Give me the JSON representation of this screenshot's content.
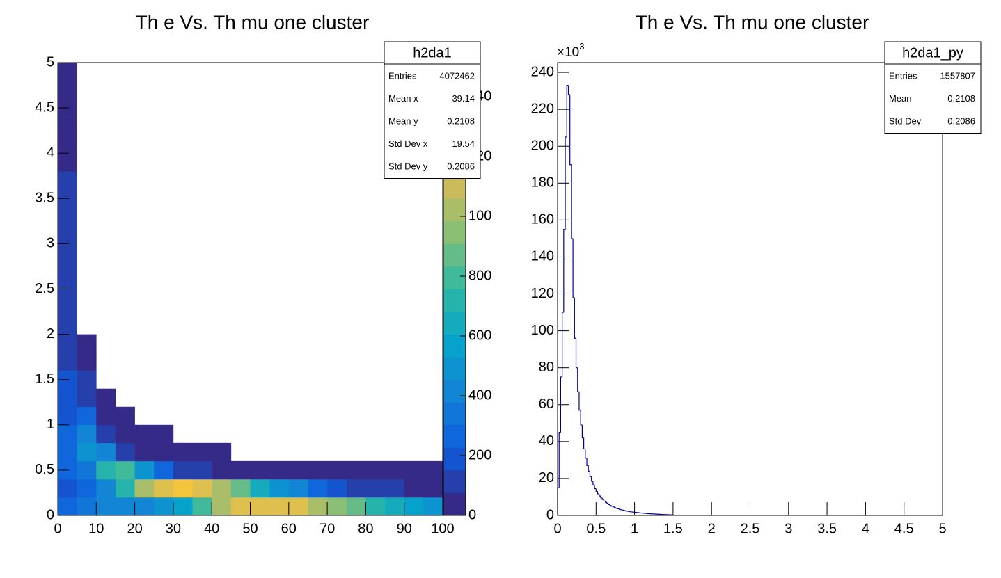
{
  "chart_data": [
    {
      "type": "heatmap",
      "title": "Th e Vs. Th mu one cluster",
      "xlim": [
        0,
        100
      ],
      "xticks": [
        0,
        10,
        20,
        30,
        40,
        50,
        60,
        70,
        80,
        90,
        100
      ],
      "ylim": [
        0,
        5
      ],
      "yticks": [
        0,
        0.5,
        1,
        1.5,
        2,
        2.5,
        3,
        3.5,
        4,
        4.5,
        5
      ],
      "zlim": [
        0,
        1514
      ],
      "zticks": [
        0,
        200,
        400,
        600,
        800,
        1000,
        1200,
        1400
      ],
      "contours": 20,
      "palette": [
        "#352a87",
        "#0f5cdd",
        "#1481d6",
        "#06a4ca",
        "#2eb7a4",
        "#87bf77",
        "#d1bb59",
        "#fec832",
        "#f9fb0e"
      ],
      "xbins": [
        0,
        5,
        10,
        15,
        20,
        25,
        30,
        35,
        40,
        45,
        50,
        55,
        60,
        65,
        70,
        75,
        80,
        85,
        90,
        95,
        100
      ],
      "ybins": [
        0,
        0.2,
        0.4,
        0.6,
        0.8,
        1,
        1.2,
        1.4,
        1.6,
        1.8,
        2,
        2.2,
        2.4,
        2.6,
        2.8,
        3,
        3.2,
        3.4,
        3.6,
        3.8,
        4,
        4.2,
        4.4,
        4.6,
        4.8,
        5
      ],
      "z": [
        [
          300,
          200,
          250,
          250,
          250,
          200,
          180,
          160,
          150,
          140,
          130,
          120,
          110,
          100,
          100,
          90,
          90,
          80,
          80,
          70,
          70,
          60,
          60,
          60,
          60
        ],
        [
          350,
          250,
          350,
          500,
          450,
          300,
          150,
          80,
          30,
          10,
          0,
          0,
          0,
          0,
          0,
          0,
          0,
          0,
          0,
          0,
          0,
          0,
          0,
          0,
          0
        ],
        [
          400,
          450,
          700,
          400,
          120,
          30,
          5,
          0,
          0,
          0,
          0,
          0,
          0,
          0,
          0,
          0,
          0,
          0,
          0,
          0,
          0,
          0,
          0,
          0,
          0
        ],
        [
          400,
          700,
          800,
          150,
          30,
          5,
          0,
          0,
          0,
          0,
          0,
          0,
          0,
          0,
          0,
          0,
          0,
          0,
          0,
          0,
          0,
          0,
          0,
          0,
          0
        ],
        [
          450,
          1000,
          500,
          60,
          10,
          0,
          0,
          0,
          0,
          0,
          0,
          0,
          0,
          0,
          0,
          0,
          0,
          0,
          0,
          0,
          0,
          0,
          0,
          0,
          0
        ],
        [
          500,
          1200,
          300,
          30,
          5,
          0,
          0,
          0,
          0,
          0,
          0,
          0,
          0,
          0,
          0,
          0,
          0,
          0,
          0,
          0,
          0,
          0,
          0,
          0,
          0
        ],
        [
          600,
          1250,
          150,
          15,
          0,
          0,
          0,
          0,
          0,
          0,
          0,
          0,
          0,
          0,
          0,
          0,
          0,
          0,
          0,
          0,
          0,
          0,
          0,
          0,
          0
        ],
        [
          800,
          1150,
          80,
          10,
          0,
          0,
          0,
          0,
          0,
          0,
          0,
          0,
          0,
          0,
          0,
          0,
          0,
          0,
          0,
          0,
          0,
          0,
          0,
          0,
          0
        ],
        [
          1000,
          1000,
          50,
          5,
          0,
          0,
          0,
          0,
          0,
          0,
          0,
          0,
          0,
          0,
          0,
          0,
          0,
          0,
          0,
          0,
          0,
          0,
          0,
          0,
          0
        ],
        [
          1150,
          850,
          30,
          0,
          0,
          0,
          0,
          0,
          0,
          0,
          0,
          0,
          0,
          0,
          0,
          0,
          0,
          0,
          0,
          0,
          0,
          0,
          0,
          0,
          0
        ],
        [
          1200,
          650,
          20,
          0,
          0,
          0,
          0,
          0,
          0,
          0,
          0,
          0,
          0,
          0,
          0,
          0,
          0,
          0,
          0,
          0,
          0,
          0,
          0,
          0,
          0
        ],
        [
          1200,
          500,
          15,
          0,
          0,
          0,
          0,
          0,
          0,
          0,
          0,
          0,
          0,
          0,
          0,
          0,
          0,
          0,
          0,
          0,
          0,
          0,
          0,
          0,
          0
        ],
        [
          1150,
          380,
          10,
          0,
          0,
          0,
          0,
          0,
          0,
          0,
          0,
          0,
          0,
          0,
          0,
          0,
          0,
          0,
          0,
          0,
          0,
          0,
          0,
          0,
          0
        ],
        [
          1050,
          280,
          8,
          0,
          0,
          0,
          0,
          0,
          0,
          0,
          0,
          0,
          0,
          0,
          0,
          0,
          0,
          0,
          0,
          0,
          0,
          0,
          0,
          0,
          0
        ],
        [
          950,
          200,
          5,
          0,
          0,
          0,
          0,
          0,
          0,
          0,
          0,
          0,
          0,
          0,
          0,
          0,
          0,
          0,
          0,
          0,
          0,
          0,
          0,
          0,
          0
        ],
        [
          850,
          150,
          4,
          0,
          0,
          0,
          0,
          0,
          0,
          0,
          0,
          0,
          0,
          0,
          0,
          0,
          0,
          0,
          0,
          0,
          0,
          0,
          0,
          0,
          0
        ],
        [
          750,
          110,
          3,
          0,
          0,
          0,
          0,
          0,
          0,
          0,
          0,
          0,
          0,
          0,
          0,
          0,
          0,
          0,
          0,
          0,
          0,
          0,
          0,
          0,
          0
        ],
        [
          650,
          80,
          2,
          0,
          0,
          0,
          0,
          0,
          0,
          0,
          0,
          0,
          0,
          0,
          0,
          0,
          0,
          0,
          0,
          0,
          0,
          0,
          0,
          0,
          0
        ],
        [
          560,
          60,
          1,
          0,
          0,
          0,
          0,
          0,
          0,
          0,
          0,
          0,
          0,
          0,
          0,
          0,
          0,
          0,
          0,
          0,
          0,
          0,
          0,
          0,
          0
        ],
        [
          480,
          45,
          1,
          0,
          0,
          0,
          0,
          0,
          0,
          0,
          0,
          0,
          0,
          0,
          0,
          0,
          0,
          0,
          0,
          0,
          0,
          0,
          0,
          0,
          0
        ]
      ],
      "stats": {
        "title": "h2da1",
        "rows": [
          {
            "label": "Entries",
            "value": 4072462
          },
          {
            "label": "Mean x",
            "value": 39.14
          },
          {
            "label": "Mean y",
            "value": 0.2108
          },
          {
            "label": "Std Dev x",
            "value": 19.54
          },
          {
            "label": "Std Dev y",
            "value": 0.2086
          }
        ]
      }
    },
    {
      "type": "histogram",
      "title": "Th e Vs. Th mu one cluster",
      "color": "#000099",
      "xlim": [
        0,
        5
      ],
      "xticks": [
        0,
        0.5,
        1,
        1.5,
        2,
        2.5,
        3,
        3.5,
        4,
        4.5,
        5
      ],
      "ylim": [
        0,
        245.3
      ],
      "yticks": [
        0,
        20,
        40,
        60,
        80,
        100,
        120,
        140,
        160,
        180,
        200,
        220,
        240
      ],
      "y_exponent": {
        "base": "×10",
        "power": "3"
      },
      "bins": [
        0,
        0.02,
        0.04,
        0.06,
        0.08,
        0.1,
        0.12,
        0.14,
        0.16,
        0.18,
        0.2,
        0.22,
        0.24,
        0.26,
        0.28,
        0.3,
        0.32,
        0.34,
        0.36,
        0.38,
        0.4,
        0.42,
        0.44,
        0.46,
        0.48,
        0.5,
        0.52,
        0.54,
        0.56,
        0.58,
        0.6,
        0.62,
        0.64,
        0.66,
        0.68,
        0.7,
        0.72,
        0.74,
        0.76,
        0.78,
        0.8,
        0.82,
        0.84,
        0.86,
        0.88,
        0.9,
        0.92,
        0.94,
        0.96,
        0.98,
        1,
        1.02,
        1.04,
        1.06,
        1.08,
        1.1,
        1.12,
        1.14,
        1.16,
        1.18,
        1.2,
        1.22,
        1.24,
        1.26,
        1.28,
        1.3,
        1.32,
        1.34,
        1.36,
        1.38,
        1.4,
        1.42,
        1.44,
        1.46,
        1.48,
        1.5
      ],
      "values": [
        15,
        45,
        75,
        110,
        155,
        205,
        233,
        228,
        190,
        150,
        118,
        96,
        80,
        67,
        57,
        49,
        42,
        36,
        31,
        27,
        24,
        21,
        18.5,
        16.5,
        14.5,
        13,
        11.7,
        10.5,
        9.5,
        8.6,
        7.8,
        7.1,
        6.5,
        5.9,
        5.4,
        5,
        4.6,
        4.2,
        3.9,
        3.6,
        3.3,
        3.1,
        2.9,
        2.7,
        2.5,
        2.3,
        2.2,
        2,
        1.9,
        1.8,
        1.7,
        1.6,
        1.5,
        1.4,
        1.3,
        1.2,
        1.15,
        1.1,
        1,
        0.95,
        0.9,
        0.85,
        0.8,
        0.75,
        0.7,
        0.65,
        0.6,
        0.55,
        0.5,
        0.47,
        0.44,
        0.41,
        0.38,
        0.35,
        0.32
      ],
      "stats": {
        "title": "h2da1_py",
        "rows": [
          {
            "label": "Entries",
            "value": 1557807
          },
          {
            "label": "Mean",
            "value": 0.2108
          },
          {
            "label": "Std Dev",
            "value": 0.2086
          }
        ]
      }
    }
  ]
}
